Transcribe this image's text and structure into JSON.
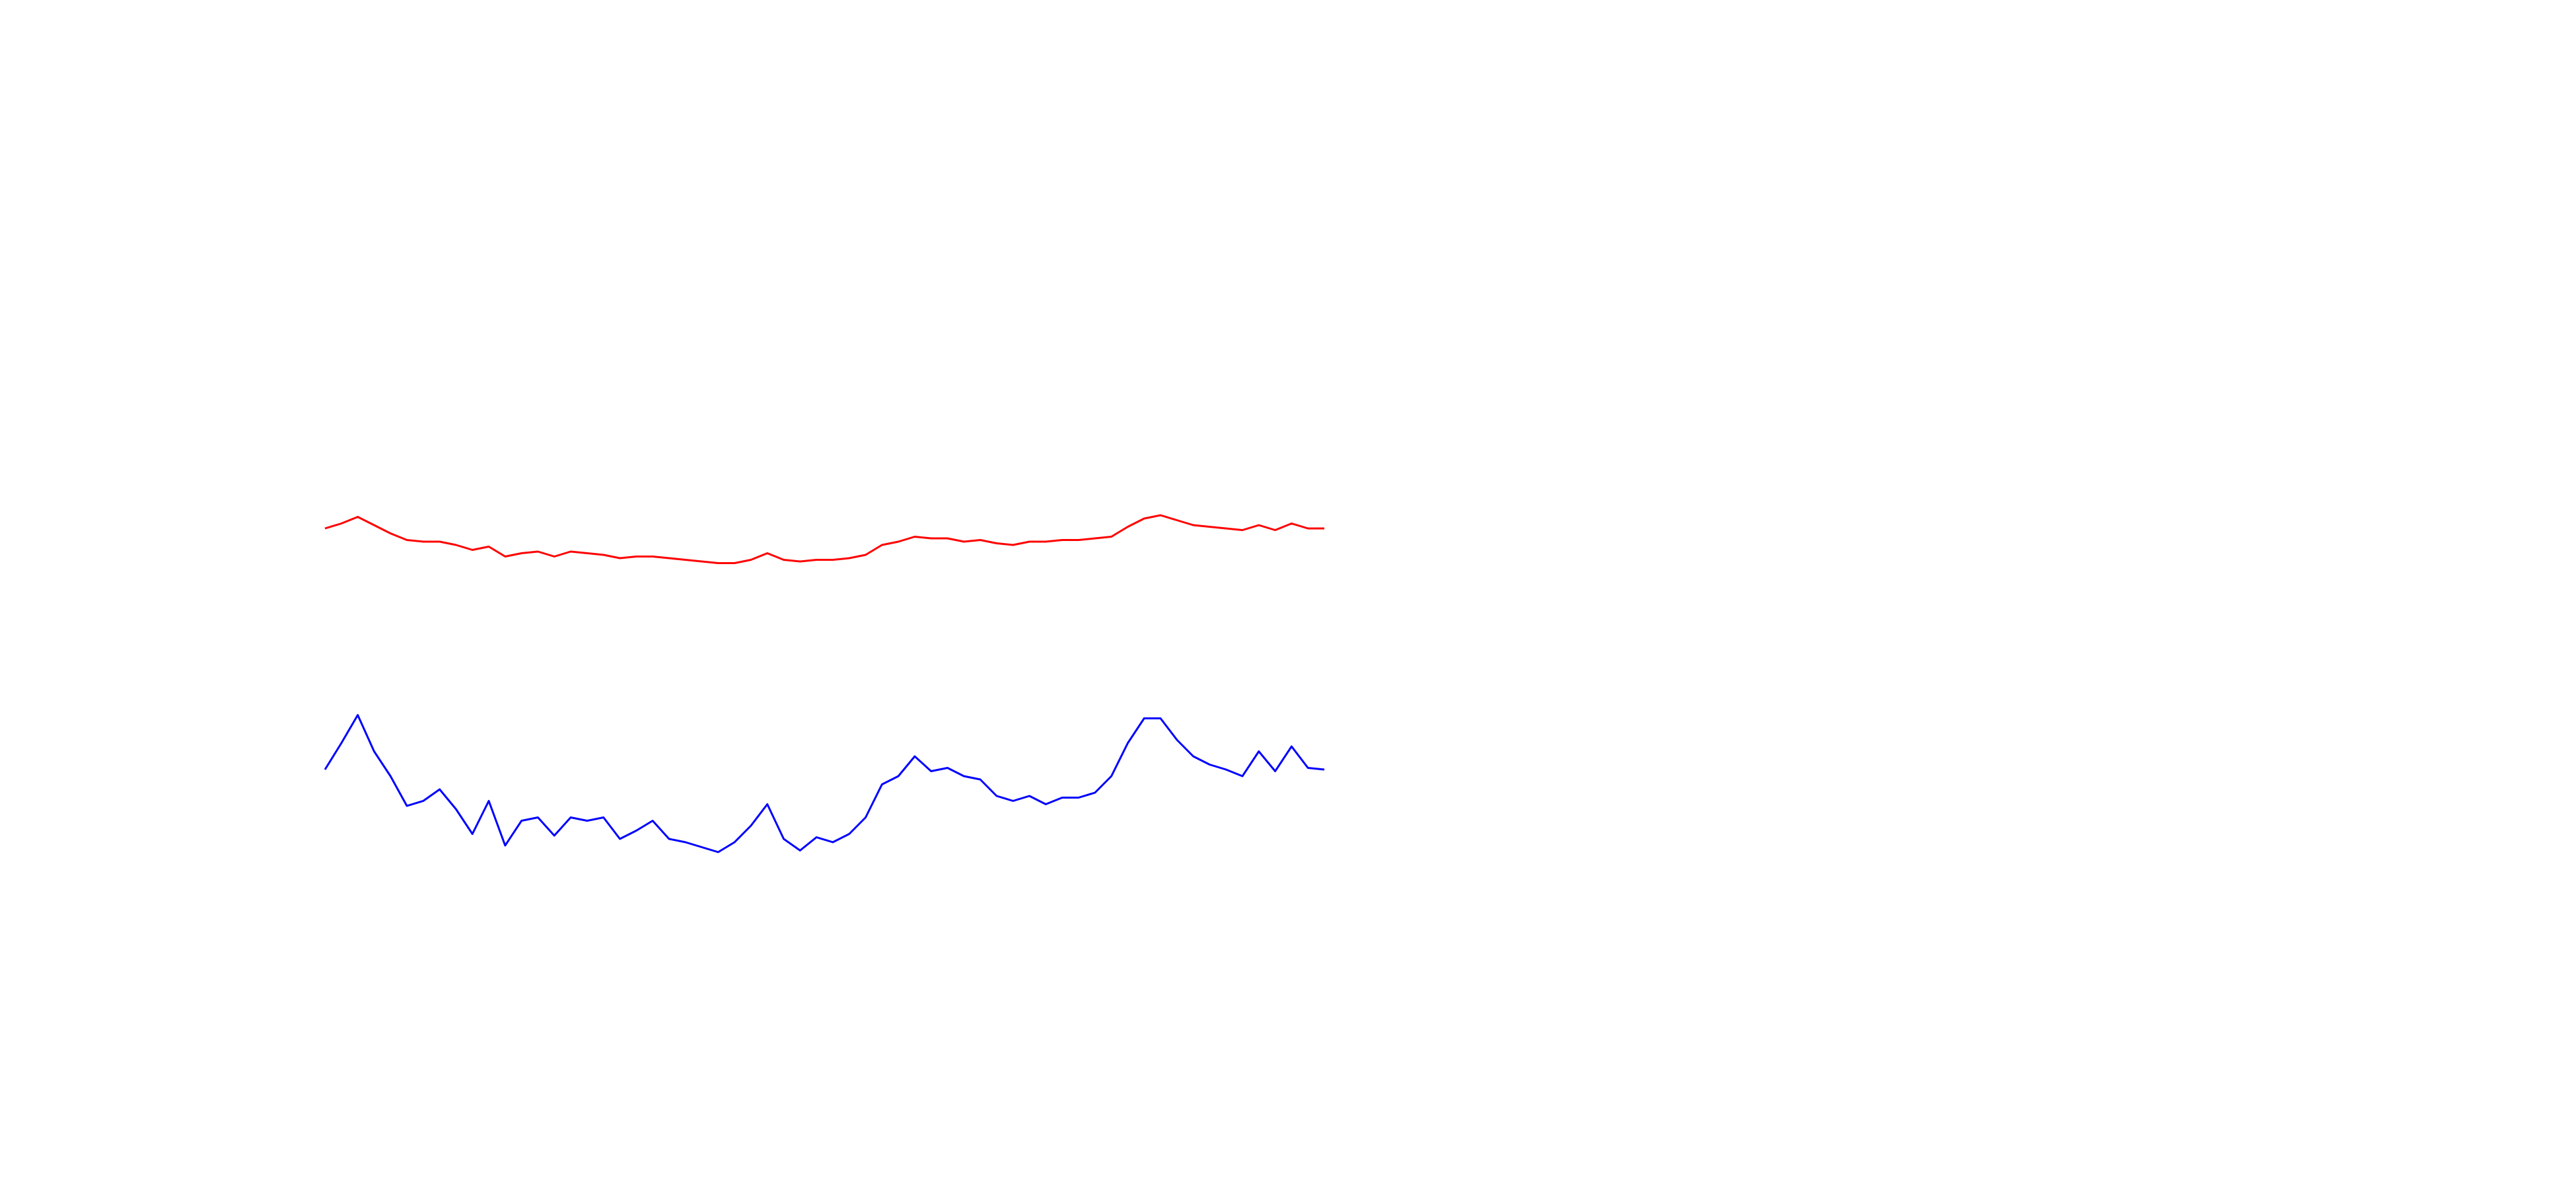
{
  "chart_data": {
    "type": "line",
    "ylim": [
      0,
      720
    ],
    "series": [
      {
        "color": "#ff0000",
        "values": [
          400,
          403,
          407,
          402,
          397,
          393,
          392,
          392,
          390,
          387,
          389,
          383,
          385,
          386,
          383,
          386,
          385,
          384,
          382,
          383,
          383,
          382,
          381,
          380,
          379,
          379,
          381,
          385,
          381,
          380,
          381,
          381,
          382,
          384,
          390,
          392,
          395,
          394,
          394,
          392,
          393,
          391,
          390,
          392,
          392,
          393,
          393,
          394,
          395,
          401,
          406,
          408,
          405,
          402,
          401,
          400,
          399,
          402,
          399,
          403,
          400,
          400
        ]
      },
      {
        "color": "#0000ff",
        "values": [
          254,
          270,
          287,
          265,
          250,
          232,
          235,
          242,
          230,
          215,
          235,
          208,
          223,
          225,
          214,
          225,
          223,
          225,
          212,
          217,
          223,
          212,
          210,
          207,
          204,
          210,
          220,
          233,
          212,
          205,
          213,
          210,
          215,
          225,
          245,
          250,
          262,
          253,
          255,
          250,
          248,
          238,
          235,
          238,
          233,
          237,
          237,
          240,
          250,
          270,
          285,
          285,
          272,
          262,
          257,
          254,
          250,
          265,
          253,
          268,
          255,
          254
        ]
      }
    ]
  }
}
